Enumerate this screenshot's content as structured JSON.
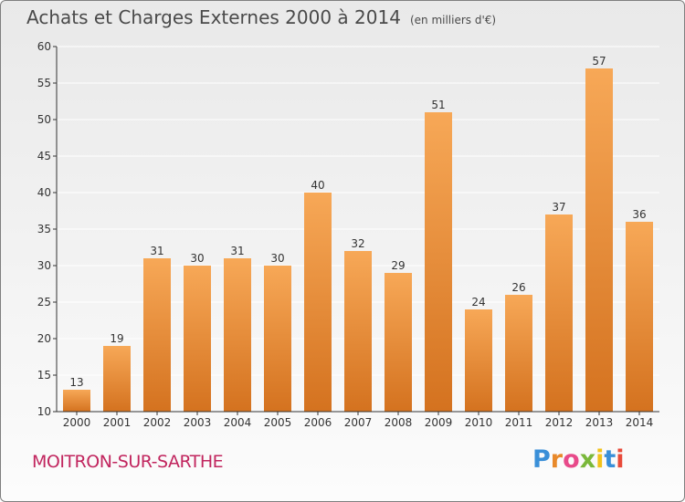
{
  "header": {
    "title": "Achats et Charges Externes 2000 à 2014",
    "subtitle": "(en milliers d'€)"
  },
  "footer": {
    "commune": "MOITRON-SUR-SARTHE",
    "brand_letters": [
      "P",
      "r",
      "o",
      "x",
      "i",
      "t",
      "i"
    ],
    "brand_colors": [
      "#3a8fd8",
      "#e8892a",
      "#e84a8a",
      "#7ab83a",
      "#f2c21a",
      "#3a8fd8",
      "#e84a3a"
    ]
  },
  "colors": {
    "bar_top": "#f7a857",
    "bar_bottom": "#d4721f",
    "axis": "#333333",
    "grid": "#ffffff"
  },
  "chart_data": {
    "type": "bar",
    "categories": [
      "2000",
      "2001",
      "2002",
      "2003",
      "2004",
      "2005",
      "2006",
      "2007",
      "2008",
      "2009",
      "2010",
      "2011",
      "2012",
      "2013",
      "2014"
    ],
    "values": [
      13,
      19,
      31,
      30,
      31,
      30,
      40,
      32,
      29,
      51,
      24,
      26,
      37,
      57,
      36
    ],
    "ylim": [
      10,
      60
    ],
    "yticks": [
      10,
      15,
      20,
      25,
      30,
      35,
      40,
      45,
      50,
      55,
      60
    ],
    "xlabel": "",
    "ylabel": "",
    "grid": "horizontal"
  }
}
